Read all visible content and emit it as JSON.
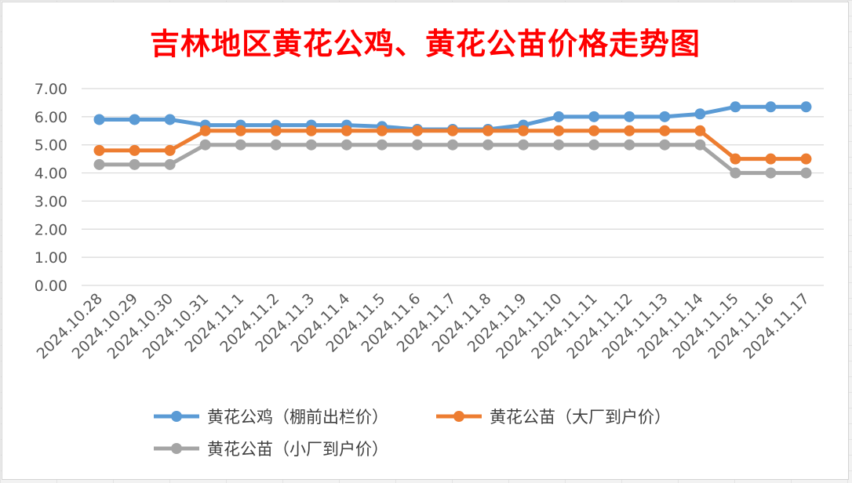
{
  "chart_data": {
    "type": "line",
    "title": "吉林地区黄花公鸡、黄花公苗价格走势图",
    "xlabel": "",
    "ylabel": "",
    "categories": [
      "2024.10.28",
      "2024.10.29",
      "2024.10.30",
      "2024.10.31",
      "2024.11.1",
      "2024.11.2",
      "2024.11.3",
      "2024.11.4",
      "2024.11.5",
      "2024.11.6",
      "2024.11.7",
      "2024.11.8",
      "2024.11.9",
      "2024.11.10",
      "2024.11.11",
      "2024.11.12",
      "2024.11.13",
      "2024.11.14",
      "2024.11.15",
      "2024.11.16",
      "2024.11.17"
    ],
    "y_ticks": [
      "0.00",
      "1.00",
      "2.00",
      "3.00",
      "4.00",
      "5.00",
      "6.00",
      "7.00"
    ],
    "ylim": [
      0,
      7
    ],
    "grid": true,
    "legend_position": "bottom",
    "series": [
      {
        "name": "黄花公鸡（棚前出栏价）",
        "color": "#5b9bd5",
        "values": [
          5.9,
          5.9,
          5.9,
          5.7,
          5.7,
          5.7,
          5.7,
          5.7,
          5.65,
          5.55,
          5.55,
          5.55,
          5.7,
          6.0,
          6.0,
          6.0,
          6.0,
          6.1,
          6.35,
          6.35,
          6.35
        ]
      },
      {
        "name": "黄花公苗（大厂到户价）",
        "color": "#ed7d31",
        "values": [
          4.8,
          4.8,
          4.8,
          5.5,
          5.5,
          5.5,
          5.5,
          5.5,
          5.5,
          5.5,
          5.5,
          5.5,
          5.5,
          5.5,
          5.5,
          5.5,
          5.5,
          5.5,
          4.5,
          4.5,
          4.5
        ]
      },
      {
        "name": "黄花公苗（小厂到户价）",
        "color": "#a5a5a5",
        "values": [
          4.3,
          4.3,
          4.3,
          5.0,
          5.0,
          5.0,
          5.0,
          5.0,
          5.0,
          5.0,
          5.0,
          5.0,
          5.0,
          5.0,
          5.0,
          5.0,
          5.0,
          5.0,
          4.0,
          4.0,
          4.0
        ]
      }
    ],
    "title_color": "#ff0000"
  }
}
